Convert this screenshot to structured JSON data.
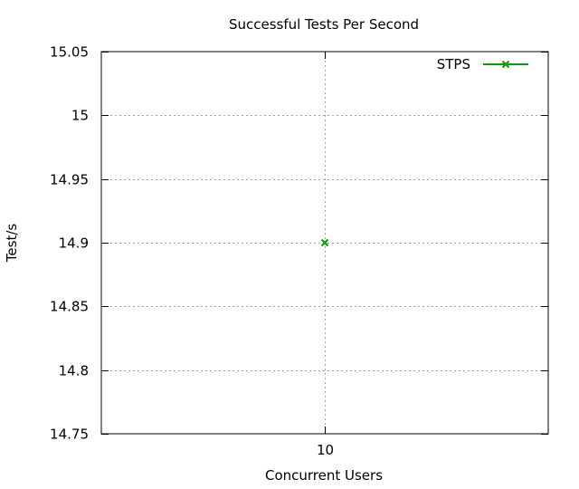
{
  "chart_data": {
    "type": "line",
    "title": "Successful Tests Per Second",
    "xlabel": "Concurrent Users",
    "ylabel": "Test/s",
    "x_ticks": [
      "10"
    ],
    "y_ticks": [
      "15.05",
      "15",
      "14.95",
      "14.9",
      "14.85",
      "14.8",
      "14.75"
    ],
    "ylim": [
      14.75,
      15.05
    ],
    "grid": true,
    "legend_position": "top-right",
    "series": [
      {
        "name": "STPS",
        "color": "#00a000",
        "marker": "x",
        "points": [
          {
            "x": "10",
            "y": 14.9
          }
        ]
      }
    ]
  }
}
